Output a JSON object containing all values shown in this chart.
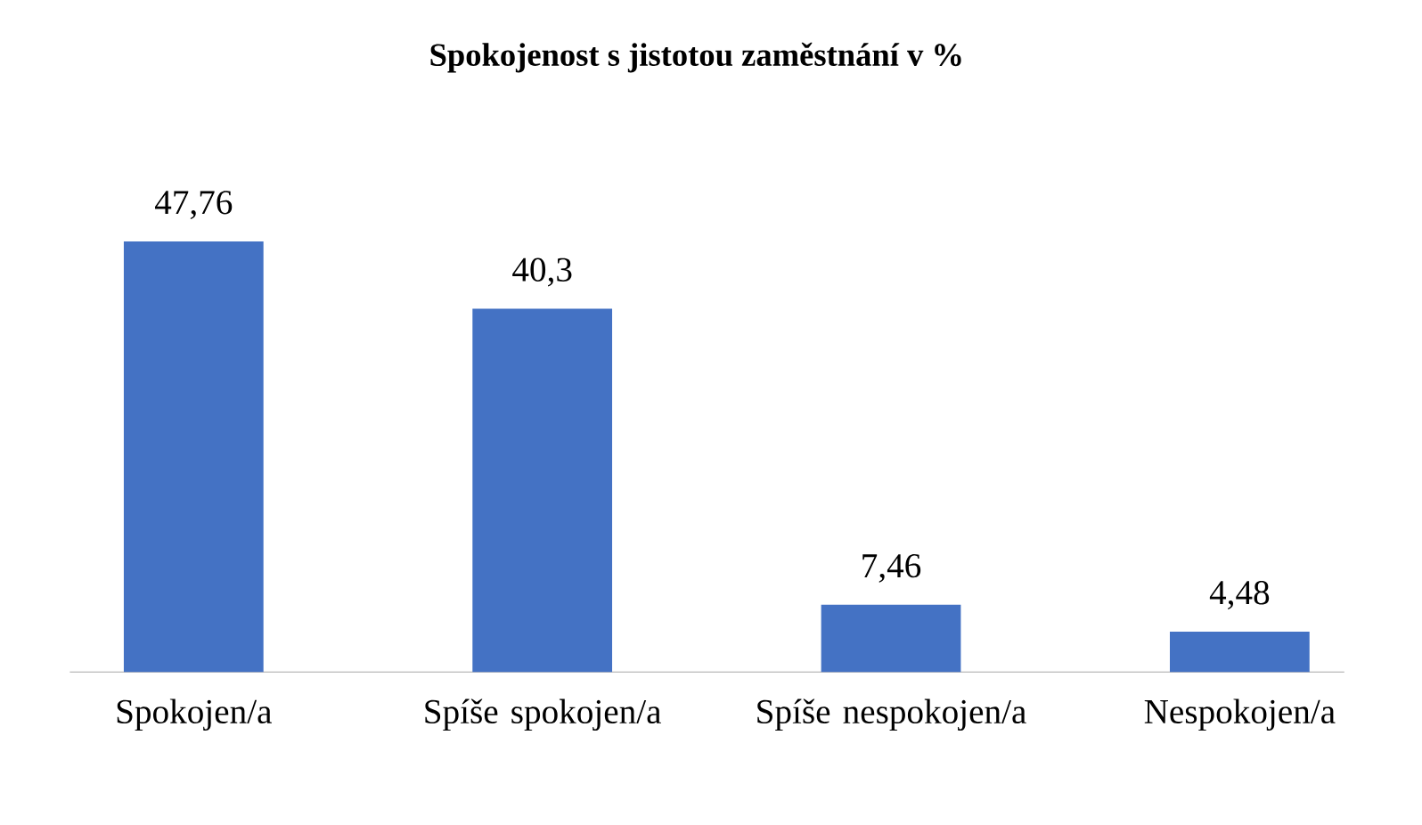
{
  "chart_data": {
    "type": "bar",
    "title": "Spokojenost s jistotou zaměstnání v %",
    "categories": [
      "Spokojen/a",
      "Spíše spokojen/a",
      "Spíše nespokojen/a",
      "Nespokojen/a"
    ],
    "values": [
      47.76,
      40.3,
      7.46,
      4.48
    ],
    "value_labels": [
      "47,76",
      "40,3",
      "7,46",
      "4,48"
    ],
    "color": "#4472c4"
  }
}
